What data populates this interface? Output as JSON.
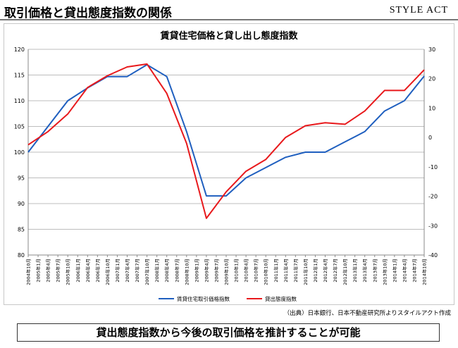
{
  "header": {
    "title": "取引価格と貸出態度指数の関係",
    "brand": "STYLE ACT"
  },
  "source_note": "（出典）日本銀行、日本不動産研究所よりスタイルアクト作成",
  "banner": "貸出態度指数から今後の取引価格を推計することが可能",
  "colors": {
    "rent_price_index": "#1f5fbf",
    "lending_attitude_index": "#e8191c"
  },
  "chart_data": {
    "type": "line",
    "title": "賃貸住宅価格と貸し出し態度指数",
    "categories": [
      "2004年10月",
      "2005年4月",
      "2005年10月",
      "2006年4月",
      "2006年10月",
      "2007年4月",
      "2007年10月",
      "2008年4月",
      "2008年10月",
      "2009年4月",
      "2009年10月",
      "2010年4月",
      "2010年10月",
      "2011年4月",
      "2011年10月",
      "2012年4月",
      "2012年10月",
      "2013年4月",
      "2013年10月",
      "2014年4月",
      "2014年10月"
    ],
    "tick_labels": [
      "2004年10月",
      "2005年1月",
      "2005年4月",
      "2005年7月",
      "2005年10月",
      "2006年1月",
      "2006年4月",
      "2006年7月",
      "2006年10月",
      "2007年1月",
      "2007年4月",
      "2007年7月",
      "2007年10月",
      "2008年1月",
      "2008年4月",
      "2008年7月",
      "2008年10月",
      "2009年1月",
      "2009年4月",
      "2009年7月",
      "2009年10月",
      "2010年1月",
      "2010年4月",
      "2010年7月",
      "2010年10月",
      "2011年1月",
      "2011年4月",
      "2011年7月",
      "2011年10月",
      "2012年1月",
      "2012年4月",
      "2012年7月",
      "2012年10月",
      "2013年1月",
      "2013年4月",
      "2013年7月",
      "2013年10月",
      "2014年1月",
      "2014年4月",
      "2014年7月",
      "2014年10月"
    ],
    "left_axis": {
      "ylim": [
        80,
        120
      ],
      "ticks": [
        80,
        85,
        90,
        95,
        100,
        105,
        110,
        115,
        120
      ]
    },
    "right_axis": {
      "ylim": [
        -40,
        30
      ],
      "ticks": [
        -40,
        -30,
        -20,
        -10,
        0,
        10,
        20,
        30
      ]
    },
    "series": [
      {
        "name": "賃貸住宅取引価格指数",
        "axis": "left",
        "values": [
          100,
          105,
          110,
          112.5,
          114.7,
          114.7,
          117,
          114.7,
          104,
          91.5,
          91.5,
          95,
          97,
          99,
          100,
          100,
          102,
          104,
          108,
          110,
          114.8
        ]
      },
      {
        "name": "貸出態度指数",
        "axis": "right",
        "values": [
          -2.5,
          2,
          8,
          17,
          21,
          24,
          25,
          15,
          -2,
          -27.5,
          -18.5,
          -11.5,
          -7.5,
          0,
          4,
          5,
          4.5,
          9,
          16,
          16,
          23
        ]
      }
    ],
    "grid": true,
    "legend": "bottom"
  }
}
